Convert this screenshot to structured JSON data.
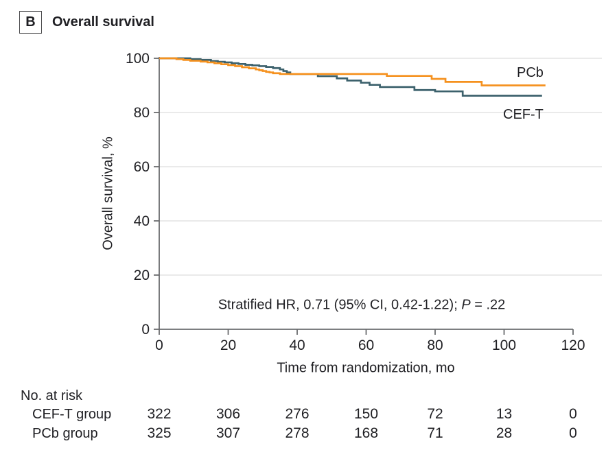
{
  "panel": {
    "label": "B",
    "title": "Overall survival"
  },
  "chart_data": {
    "type": "line",
    "subtype": "kaplan-meier-step",
    "title": "Overall survival",
    "xlabel": "Time from randomization, mo",
    "ylabel": "Overall survival, %",
    "xlim": [
      0,
      120
    ],
    "ylim": [
      0,
      100
    ],
    "xticks": [
      0,
      20,
      40,
      60,
      80,
      100,
      120
    ],
    "yticks": [
      0,
      20,
      40,
      60,
      80,
      100
    ],
    "grid": "horizontal-light",
    "legend_position": "end-of-curve",
    "annotation": {
      "prefix": "Stratified HR, 0.71 (95% CI, 0.42-1.22); ",
      "p_label": "P",
      "p_value": " = .22"
    },
    "colors": {
      "grid": "#E3E3E3",
      "axis": "#6A6B6E",
      "text": "#1F1F23",
      "cef_t": "#3C616C",
      "pcb": "#F5911E"
    },
    "series": [
      {
        "name": "CEF-T",
        "color": "#3C616C",
        "points": [
          [
            0,
            100
          ],
          [
            9,
            99.7
          ],
          [
            12,
            99.4
          ],
          [
            15,
            99.0
          ],
          [
            17,
            98.7
          ],
          [
            19,
            98.5
          ],
          [
            21,
            98.2
          ],
          [
            23,
            97.9
          ],
          [
            25,
            97.6
          ],
          [
            27,
            97.4
          ],
          [
            29,
            97.1
          ],
          [
            31,
            96.8
          ],
          [
            33,
            96.4
          ],
          [
            35,
            95.9
          ],
          [
            36,
            95.3
          ],
          [
            37,
            94.8
          ],
          [
            38,
            94.2
          ],
          [
            46,
            93.4
          ],
          [
            51.5,
            92.6
          ],
          [
            54.5,
            91.8
          ],
          [
            58.5,
            91.0
          ],
          [
            61,
            90.2
          ],
          [
            64,
            89.4
          ],
          [
            74,
            88.3
          ],
          [
            80,
            87.8
          ],
          [
            88,
            86.2
          ],
          [
            111,
            86.2
          ]
        ]
      },
      {
        "name": "PCb",
        "color": "#F5911E",
        "points": [
          [
            0,
            100
          ],
          [
            5,
            99.7
          ],
          [
            7,
            99.4
          ],
          [
            9,
            99.1
          ],
          [
            12,
            98.8
          ],
          [
            14,
            98.5
          ],
          [
            16,
            98.2
          ],
          [
            18,
            97.8
          ],
          [
            20,
            97.5
          ],
          [
            22,
            97.1
          ],
          [
            24,
            96.7
          ],
          [
            26,
            96.3
          ],
          [
            28,
            95.9
          ],
          [
            29,
            95.6
          ],
          [
            30,
            95.3
          ],
          [
            31,
            95.0
          ],
          [
            32,
            94.8
          ],
          [
            33,
            94.5
          ],
          [
            35,
            94.2
          ],
          [
            66,
            93.5
          ],
          [
            79,
            92.4
          ],
          [
            83,
            91.3
          ],
          [
            93.5,
            90.0
          ],
          [
            112,
            90.0
          ]
        ]
      }
    ]
  },
  "risk_table": {
    "header": "No. at risk",
    "rows": [
      {
        "label": "CEF-T group",
        "values": [
          "322",
          "306",
          "276",
          "150",
          "72",
          "13",
          "0"
        ]
      },
      {
        "label": "PCb group",
        "values": [
          "325",
          "307",
          "278",
          "168",
          "71",
          "28",
          "0"
        ]
      }
    ]
  }
}
